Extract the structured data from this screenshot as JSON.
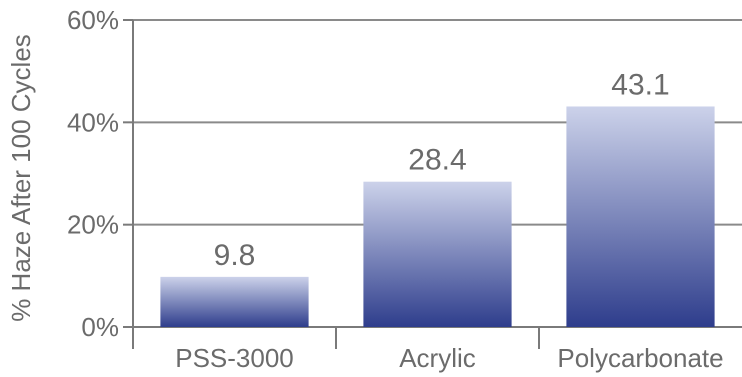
{
  "chart_data": {
    "type": "bar",
    "categories": [
      "PSS-3000",
      "Acrylic",
      "Polycarbonate"
    ],
    "values": [
      9.8,
      28.4,
      43.1
    ],
    "data_labels": [
      "9.8",
      "28.4",
      "43.1"
    ],
    "title": "",
    "xlabel": "",
    "ylabel": "% Haze After 100 Cycles",
    "ylim": [
      0,
      60
    ],
    "yticks": [
      0,
      20,
      40,
      60
    ],
    "ytick_labels": [
      "0%",
      "20%",
      "40%",
      "60%"
    ],
    "grid": true,
    "legend": "none",
    "colors": {
      "bar_top": "#ccd2ea",
      "bar_bottom": "#2e3d8c",
      "grid": "#8a8a8a",
      "axis": "#7a7a7a",
      "text": "#6b6b6b"
    }
  }
}
